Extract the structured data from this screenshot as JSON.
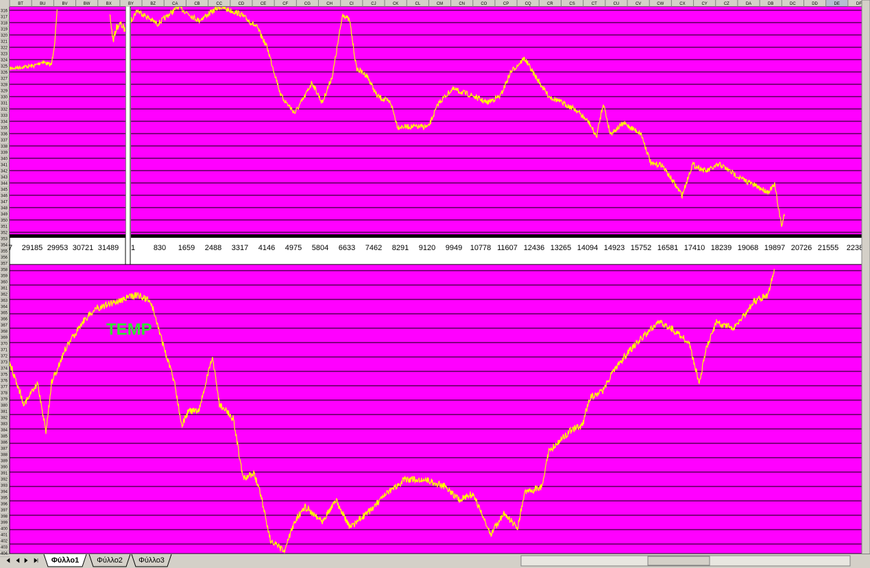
{
  "column_headers": [
    "BT",
    "BU",
    "BV",
    "BW",
    "BX",
    "BY",
    "BZ",
    "CA",
    "CB",
    "CC",
    "CD",
    "CE",
    "CF",
    "CG",
    "CH",
    "CI",
    "CJ",
    "CK",
    "CL",
    "CM",
    "CN",
    "CO",
    "CP",
    "CQ",
    "CR",
    "CS",
    "CT",
    "CU",
    "CV",
    "CW",
    "CX",
    "CY",
    "CZ",
    "DA",
    "DB",
    "DC",
    "DD",
    "DE",
    "DF"
  ],
  "row_numbers": [
    316,
    317,
    318,
    319,
    320,
    321,
    322,
    323,
    324,
    325,
    326,
    327,
    328,
    329,
    330,
    331,
    332,
    333,
    334,
    335,
    336,
    337,
    338,
    339,
    340,
    341,
    342,
    343,
    344,
    345,
    346,
    347,
    348,
    349,
    350,
    351,
    352,
    353,
    354,
    355,
    356,
    357,
    358,
    359,
    360,
    361,
    362,
    363,
    364,
    365,
    366,
    367,
    368,
    369,
    370,
    371,
    372,
    373,
    374,
    375,
    376,
    377,
    378,
    379,
    380,
    381,
    382,
    383,
    384,
    385,
    386,
    387,
    388,
    389,
    390,
    391,
    392,
    393,
    394,
    395,
    396,
    397,
    398,
    399,
    400,
    401,
    402,
    403,
    404
  ],
  "charts": [
    {
      "x_labels": [
        7,
        29185,
        29953,
        30721,
        31489
      ]
    },
    {
      "x_labels": [
        1,
        830,
        1659,
        2488,
        3317,
        4146,
        4975,
        5804,
        6633,
        7462,
        8291,
        9120,
        9949,
        10778,
        11607,
        12436,
        13265,
        14094,
        14923,
        15752,
        16581,
        17410,
        18239,
        19068,
        19897,
        20726,
        21555,
        2238
      ]
    },
    {
      "label": "TEMP"
    }
  ],
  "sheet_tabs": [
    "Φύλλο1",
    "Φύλλο2",
    "Φύλλο3"
  ]
}
